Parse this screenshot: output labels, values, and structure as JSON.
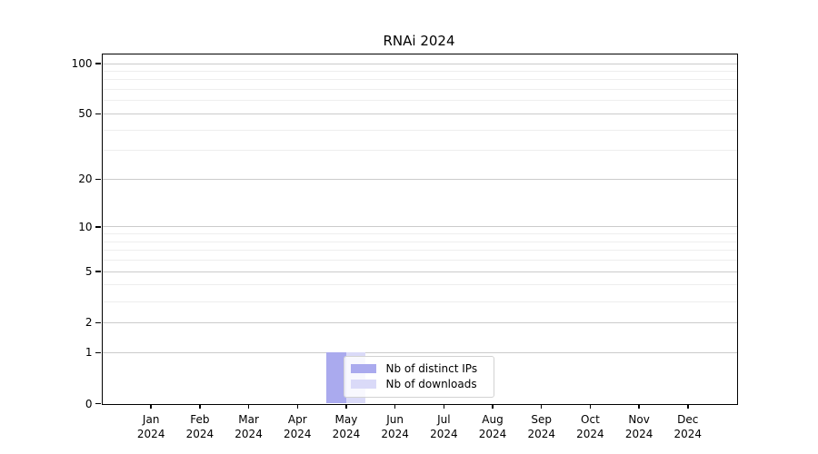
{
  "title": "RNAi 2024",
  "chart_data": {
    "type": "bar",
    "title": "RNAi 2024",
    "categories": [
      "Jan",
      "Feb",
      "Mar",
      "Apr",
      "May",
      "Jun",
      "Jul",
      "Aug",
      "Sep",
      "Oct",
      "Nov",
      "Dec"
    ],
    "category_year": "2024",
    "series": [
      {
        "name": "Nb of distinct IPs",
        "color": "#aaaaee",
        "values": [
          0,
          0,
          0,
          0,
          1,
          0,
          0,
          0,
          0,
          0,
          0,
          0
        ]
      },
      {
        "name": "Nb of downloads",
        "color": "#dadaf8",
        "values": [
          0,
          0,
          0,
          0,
          1,
          0,
          0,
          0,
          0,
          0,
          0,
          0
        ]
      }
    ],
    "xlabel": "",
    "ylabel": "",
    "y_axis": {
      "scale": "log1p",
      "tick_labels": [
        0,
        1,
        2,
        5,
        10,
        20,
        50,
        100
      ],
      "major_gridlines": [
        1,
        2,
        5,
        10,
        20,
        50,
        100
      ],
      "minor_gridlines": [
        3,
        4,
        6,
        7,
        8,
        9,
        30,
        40,
        60,
        70,
        80,
        90
      ],
      "range": [
        0,
        114
      ]
    },
    "grid": "horizontal",
    "legend": {
      "position": "lower center",
      "entries": [
        "Nb of distinct IPs",
        "Nb of downloads"
      ]
    },
    "colors": {
      "major_grid": "#cbcbcb",
      "minor_grid": "#eeeeee",
      "axis": "#000000",
      "background": "#ffffff"
    }
  }
}
